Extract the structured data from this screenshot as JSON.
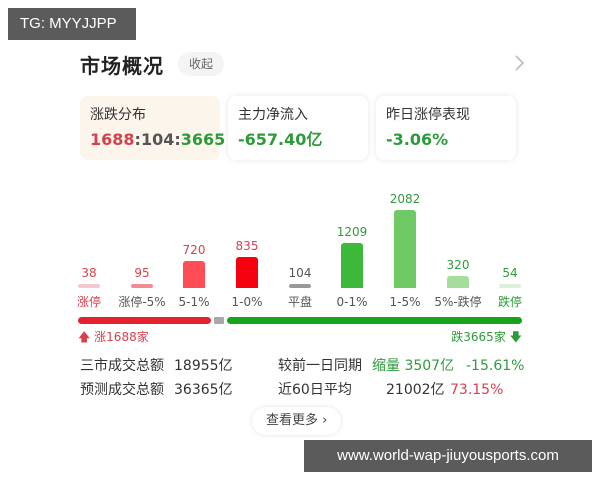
{
  "overlay": {
    "tg_label": "TG: MYYJJPP",
    "url_label": "www.world-wap-jiuyousports.com"
  },
  "header": {
    "title": "市场概况",
    "collapse_label": "收起",
    "more_icon": "chevron-right-icon"
  },
  "stat_cards": [
    {
      "label": "涨跌分布",
      "up": "1688",
      "sep1": ":",
      "flat": "104",
      "sep2": ":",
      "down": "3665",
      "active": true
    },
    {
      "label": "主力净流入",
      "value": "-657.40亿",
      "active": false
    },
    {
      "label": "昨日涨停表现",
      "value": "-3.06%",
      "active": false
    }
  ],
  "colors": {
    "red": "#d6414e",
    "green": "#2e9b3a",
    "flat": "#999999",
    "bar_red_strong": "#f5000f",
    "bar_red": "#ff4d55",
    "bar_red_light": "#f28c92",
    "bar_red_faint": "#f5c9cc",
    "bar_green_strong": "#3cb83a",
    "bar_green": "#6fca66",
    "bar_green_light": "#a6dd9c",
    "bar_green_faint": "#dcefd8",
    "progress_red": "#e3222e",
    "progress_green": "#17a31a",
    "progress_grey": "#a8a8a8"
  },
  "chart_data": {
    "type": "bar",
    "title": "涨跌分布",
    "categories": [
      "涨停",
      "涨停-5%",
      "5-1%",
      "1-0%",
      "平盘",
      "0-1%",
      "1-5%",
      "5%-跌停",
      "跌停"
    ],
    "values": [
      38,
      95,
      720,
      835,
      104,
      1209,
      2082,
      320,
      54
    ],
    "value_labels": [
      "38",
      "95",
      "720",
      "835",
      "104",
      "1209",
      "2082",
      "320",
      "54"
    ],
    "xlabel": "",
    "ylabel": "",
    "grid": false
  },
  "progress": {
    "up_label": "涨1688家",
    "down_label": "跌3665家",
    "up_count": 1688,
    "flat_count": 104,
    "down_count": 3665
  },
  "summary": {
    "rows": [
      {
        "label": "三市成交总额",
        "value": "18955亿",
        "compare_label": "较前一日同期",
        "change": "缩量 3507亿",
        "pct": "-15.61%"
      },
      {
        "label": "预测成交总额",
        "value": "36365亿",
        "compare_label": "近60日平均",
        "change": "21002亿",
        "pct": "73.15%"
      }
    ]
  },
  "more_button": {
    "label": "查看更多 ›"
  }
}
